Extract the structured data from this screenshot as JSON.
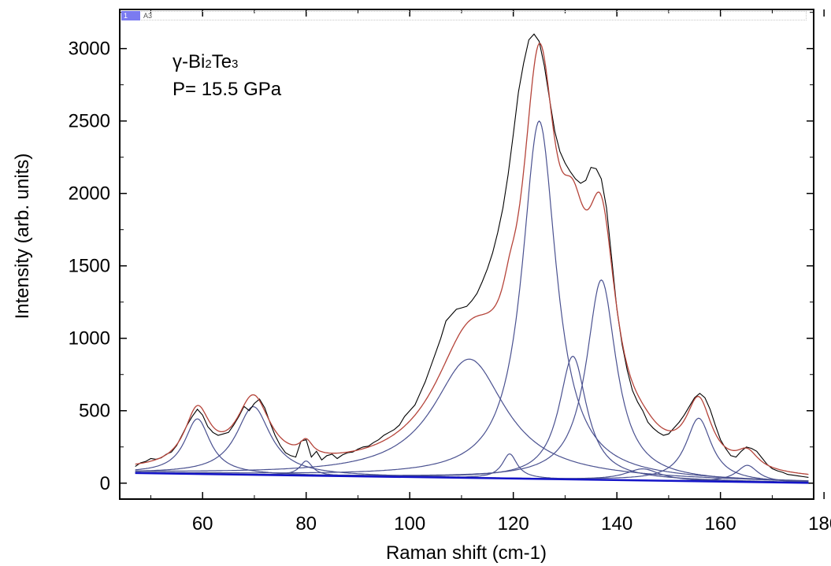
{
  "window": {
    "tabs": [
      {
        "label": "1",
        "active": true
      },
      {
        "label": "A3",
        "active": false
      }
    ]
  },
  "chart_data": {
    "type": "line",
    "title": "",
    "xlabel": "Raman shift (cm-1)",
    "ylabel": "Intensity (arb. units)",
    "xlim": [
      44,
      178
    ],
    "ylim": [
      -110,
      3270
    ],
    "xticks": [
      60,
      80,
      100,
      120,
      140,
      160,
      180
    ],
    "yticks": [
      0,
      500,
      1000,
      1500,
      2000,
      2500,
      3000
    ],
    "grid": false,
    "annotations": {
      "sample_prefix": "γ-Bi",
      "sub1": "2",
      "mid": "Te",
      "sub2": "3",
      "pressure": "P= 15.5 GPa"
    },
    "colors": {
      "data": "#000000",
      "fit": "#b5443a",
      "components": "#4a5190",
      "baseline": "#1414c8"
    },
    "baseline": {
      "x": [
        47,
        177
      ],
      "y": [
        70,
        2
      ]
    },
    "peaks": [
      {
        "center": 59,
        "height": 380,
        "fwhm": 6
      },
      {
        "center": 69.8,
        "height": 470,
        "fwhm": 8
      },
      {
        "center": 80,
        "height": 100,
        "fwhm": 3
      },
      {
        "center": 111.5,
        "height": 820,
        "fwhm": 17
      },
      {
        "center": 119.3,
        "height": 170,
        "fwhm": 3.5
      },
      {
        "center": 125,
        "height": 2470,
        "fwhm": 8
      },
      {
        "center": 131.5,
        "height": 850,
        "fwhm": 6.5
      },
      {
        "center": 137,
        "height": 1380,
        "fwhm": 7
      },
      {
        "center": 145,
        "height": 80,
        "fwhm": 8
      },
      {
        "center": 155.8,
        "height": 435,
        "fwhm": 6
      },
      {
        "center": 165.2,
        "height": 115,
        "fwhm": 5
      }
    ],
    "experimental": {
      "x": [
        47,
        48,
        49,
        50,
        51,
        52,
        53,
        54,
        55,
        56,
        57,
        58,
        59,
        60,
        61,
        62,
        63,
        64,
        65,
        66,
        67,
        68,
        69,
        70,
        71,
        72,
        73,
        74,
        75,
        76,
        77,
        78,
        79,
        80,
        81,
        82,
        83,
        84,
        85,
        86,
        87,
        88,
        89,
        90,
        91,
        92,
        93,
        94,
        95,
        96,
        97,
        98,
        99,
        100,
        101,
        102,
        103,
        104,
        105,
        106,
        107,
        108,
        109,
        110,
        111,
        112,
        113,
        114,
        115,
        116,
        117,
        118,
        119,
        120,
        121,
        122,
        123,
        124,
        125,
        126,
        127,
        128,
        129,
        130,
        131,
        132,
        133,
        134,
        135,
        136,
        137,
        138,
        139,
        140,
        141,
        142,
        143,
        144,
        145,
        146,
        147,
        148,
        149,
        150,
        151,
        152,
        153,
        154,
        155,
        156,
        157,
        158,
        159,
        160,
        161,
        162,
        163,
        164,
        165,
        166,
        167,
        168,
        169,
        170,
        171,
        172,
        173,
        174,
        175,
        176,
        177
      ],
      "y": [
        115,
        140,
        150,
        170,
        165,
        175,
        200,
        215,
        260,
        330,
        400,
        460,
        510,
        470,
        390,
        350,
        330,
        340,
        350,
        400,
        460,
        530,
        500,
        550,
        580,
        520,
        420,
        330,
        260,
        210,
        190,
        180,
        290,
        300,
        180,
        220,
        160,
        190,
        200,
        170,
        195,
        210,
        215,
        235,
        250,
        255,
        280,
        300,
        330,
        350,
        370,
        400,
        460,
        500,
        540,
        620,
        700,
        800,
        900,
        1000,
        1120,
        1160,
        1200,
        1210,
        1220,
        1260,
        1310,
        1390,
        1480,
        1590,
        1730,
        1900,
        2130,
        2410,
        2700,
        2900,
        3060,
        3100,
        3050,
        2880,
        2650,
        2430,
        2290,
        2210,
        2150,
        2100,
        2070,
        2090,
        2180,
        2170,
        2100,
        1900,
        1550,
        1200,
        960,
        780,
        640,
        560,
        500,
        420,
        380,
        350,
        330,
        340,
        380,
        420,
        470,
        530,
        590,
        620,
        590,
        510,
        400,
        300,
        240,
        190,
        180,
        220,
        250,
        240,
        220,
        175,
        130,
        100,
        85,
        75,
        60,
        55,
        50,
        45,
        40
      ]
    }
  }
}
